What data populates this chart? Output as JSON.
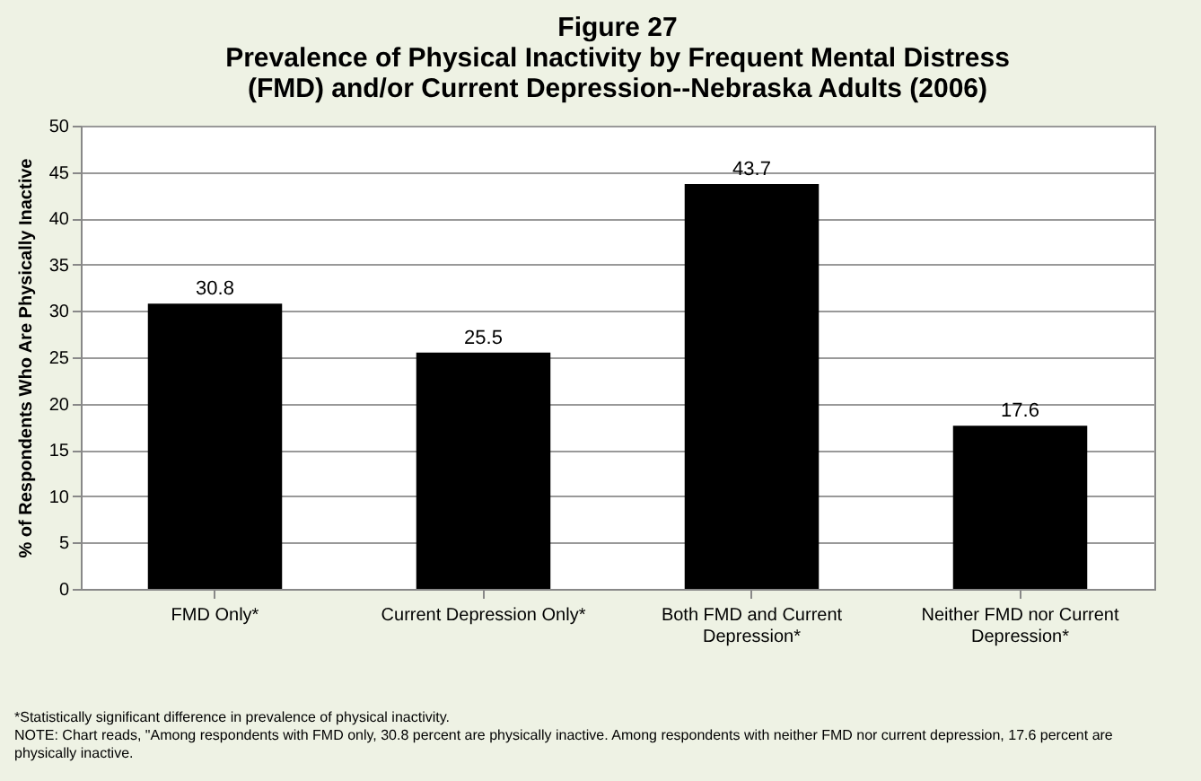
{
  "chart_data": {
    "type": "bar",
    "title": "Figure 27",
    "subtitle": "Prevalence of Physical Inactivity by Frequent Mental Distress (FMD) and/or Current Depression--Nebraska Adults (2006)",
    "ylabel": "% of Respondents Who Are Physically Inactive",
    "categories": [
      "FMD Only*",
      "Current Depression Only*",
      "Both FMD and Current Depression*",
      "Neither FMD nor Current Depression*"
    ],
    "values": [
      30.8,
      25.5,
      43.7,
      17.6
    ],
    "color": "#000000",
    "ylim": [
      0,
      50
    ],
    "yticks": [
      0,
      5,
      10,
      15,
      20,
      25,
      30,
      35,
      40,
      45,
      50
    ],
    "grid": "y",
    "data_labels": true,
    "annotations": [
      "*Statistically significant difference in prevalence of physical inactivity.",
      "NOTE: Chart reads, \"Among respondents with FMD only, 30.8 percent are physically inactive. Among respondents with neither FMD nor current depression, 17.6 percent are physically inactive."
    ]
  }
}
